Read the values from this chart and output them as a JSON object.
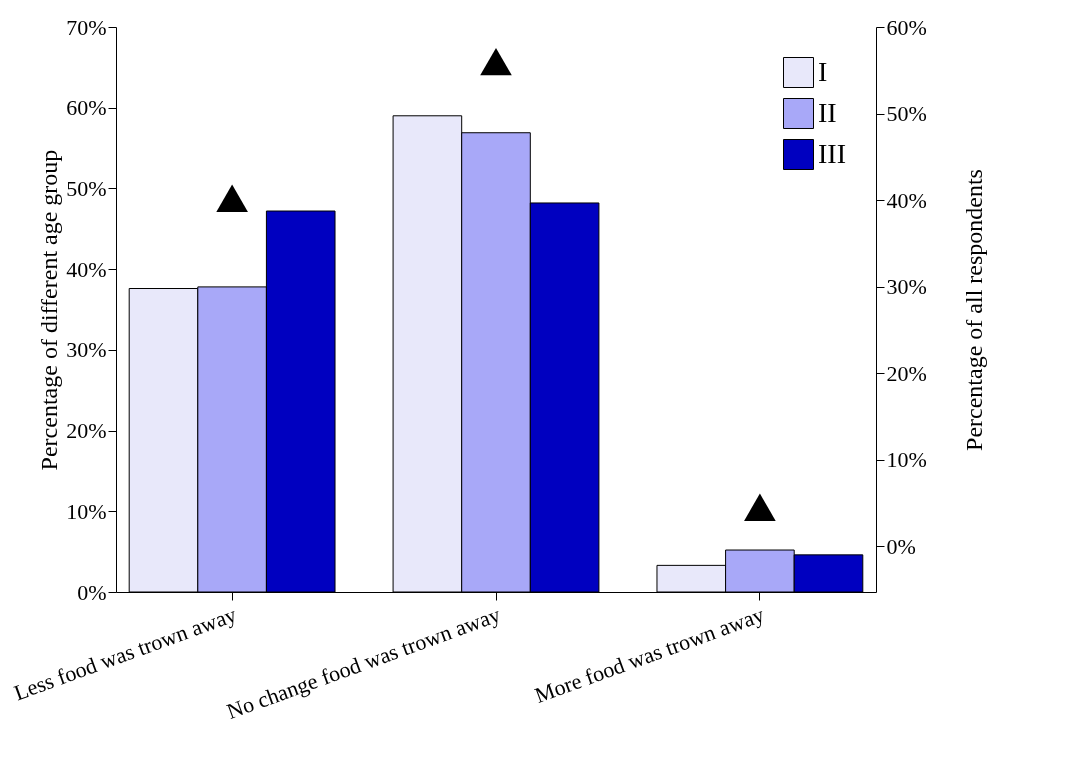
{
  "chart_data": {
    "type": "bar",
    "ylabel": "Percentage of different age group",
    "y2label": "Percentage of all respondents",
    "categories": [
      "Less food was trown away",
      "No change food was trown away",
      "More food was trown away"
    ],
    "series": [
      {
        "name": "I",
        "color": "#e8e8fa",
        "values": [
          37.6,
          59.0,
          3.3
        ]
      },
      {
        "name": "II",
        "color": "#a8a8f8",
        "values": [
          37.8,
          56.9,
          5.2
        ]
      },
      {
        "name": "III",
        "color": "#0000c0",
        "values": [
          47.2,
          48.2,
          4.6
        ]
      },
      {
        "type": "scatter",
        "axis": "y2",
        "color": "#000000",
        "marker": "triangle",
        "x": [
          "Less food was trown away",
          "No change food was trown away",
          "More food was trown away"
        ],
        "values": [
          40.2,
          56.0,
          4.5
        ]
      }
    ],
    "ylim": [
      0,
      70
    ],
    "yticks": [
      {
        "value": 0,
        "label": "0%"
      },
      {
        "value": 10,
        "label": "10%"
      },
      {
        "value": 20,
        "label": "20%"
      },
      {
        "value": 30,
        "label": "30%"
      },
      {
        "value": 40,
        "label": "40%"
      },
      {
        "value": 50,
        "label": "50%"
      },
      {
        "value": 60,
        "label": "60%"
      },
      {
        "value": 70,
        "label": "70%"
      }
    ],
    "y2lim": [
      -5.3,
      60
    ],
    "y2ticks": [
      {
        "value": 0,
        "label": "0%"
      },
      {
        "value": 10,
        "label": "10%"
      },
      {
        "value": 20,
        "label": "20%"
      },
      {
        "value": 30,
        "label": "30%"
      },
      {
        "value": 40,
        "label": "40%"
      },
      {
        "value": 50,
        "label": "50%"
      },
      {
        "value": 60,
        "label": "60%"
      }
    ],
    "legend": "top right",
    "grid": false
  }
}
